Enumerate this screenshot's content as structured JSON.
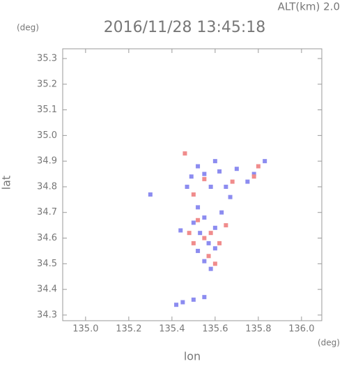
{
  "chart_data": {
    "type": "scatter",
    "title": "2016/11/28 13:45:18",
    "subtitle": "ALT(km) 2.0",
    "x_label": "lon",
    "y_label": "lat",
    "x_unit": "(deg)",
    "y_unit": "(deg)",
    "xlim": [
      134.894,
      136.094
    ],
    "ylim": [
      34.278,
      35.338
    ],
    "xticks": [
      {
        "value": 135,
        "label": "135.0"
      },
      135.2,
      135.4,
      135.6,
      135.8,
      {
        "value": 136,
        "label": "136.0"
      }
    ],
    "yticks": [
      34.3,
      34.4,
      34.5,
      34.6,
      34.7,
      34.8,
      34.9,
      {
        "value": 35,
        "label": "35.0"
      },
      35.1,
      35.2,
      35.3
    ],
    "series": [
      {
        "color": "#8c8cf0",
        "x": [
          135.52,
          135.55,
          135.49,
          135.62,
          135.7,
          135.75,
          135.65,
          135.58,
          135.52,
          135.55,
          135.5,
          135.6,
          135.53,
          135.57,
          135.52,
          135.6,
          135.55,
          135.58,
          135.45,
          135.5,
          135.55,
          135.42,
          135.3,
          135.83,
          135.47,
          135.63,
          135.44,
          135.67,
          135.78,
          135.6
        ],
        "values": [
          34.88,
          34.85,
          34.84,
          34.86,
          34.87,
          34.82,
          34.8,
          34.8,
          34.72,
          34.68,
          34.66,
          34.64,
          34.62,
          34.58,
          34.55,
          34.56,
          34.51,
          34.48,
          34.35,
          34.36,
          34.37,
          34.34,
          34.77,
          34.9,
          34.8,
          34.7,
          34.63,
          34.76,
          34.85,
          34.9
        ]
      },
      {
        "color": "#f08c8c",
        "x": [
          135.46,
          135.55,
          135.78,
          135.8,
          135.52,
          135.58,
          135.55,
          135.62,
          135.5,
          135.57,
          135.6,
          135.48,
          135.65,
          135.68,
          135.5
        ],
        "values": [
          34.93,
          34.83,
          34.84,
          34.88,
          34.67,
          34.62,
          34.6,
          34.58,
          34.58,
          34.53,
          34.5,
          34.62,
          34.65,
          34.82,
          34.77
        ]
      }
    ]
  }
}
